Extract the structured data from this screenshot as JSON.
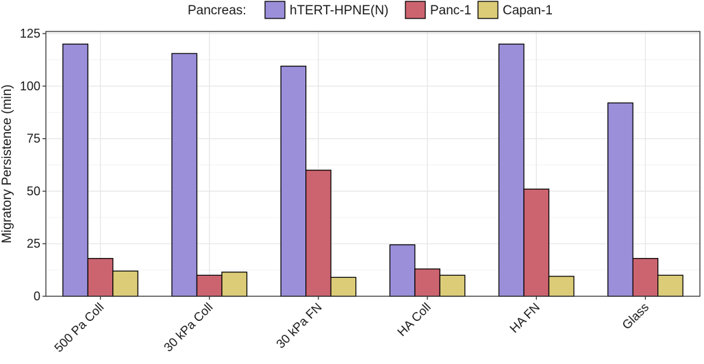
{
  "chart_data": {
    "type": "bar",
    "title": "",
    "xlabel": "",
    "ylabel": "Migratory Persistence (min)",
    "ylim": [
      0,
      126
    ],
    "yticks": [
      0,
      25,
      50,
      75,
      100,
      125
    ],
    "grid": true,
    "legend_position": "top",
    "legend_title": "Pancreas:",
    "categories": [
      "500 Pa Coll",
      "30 kPa Coll",
      "30 kPa FN",
      "HA Coll",
      "HA FN",
      "Glass"
    ],
    "series": [
      {
        "name": "hTERT-HPNE(N)",
        "color": "#9b8fda",
        "values": [
          120,
          115.5,
          109.5,
          24.5,
          120,
          92
        ]
      },
      {
        "name": "Panc-1",
        "color": "#cc6470",
        "values": [
          18,
          10,
          60,
          13,
          51,
          18
        ]
      },
      {
        "name": "Capan-1",
        "color": "#dccc78",
        "values": [
          12,
          11.5,
          9,
          10,
          9.5,
          10
        ]
      }
    ]
  }
}
